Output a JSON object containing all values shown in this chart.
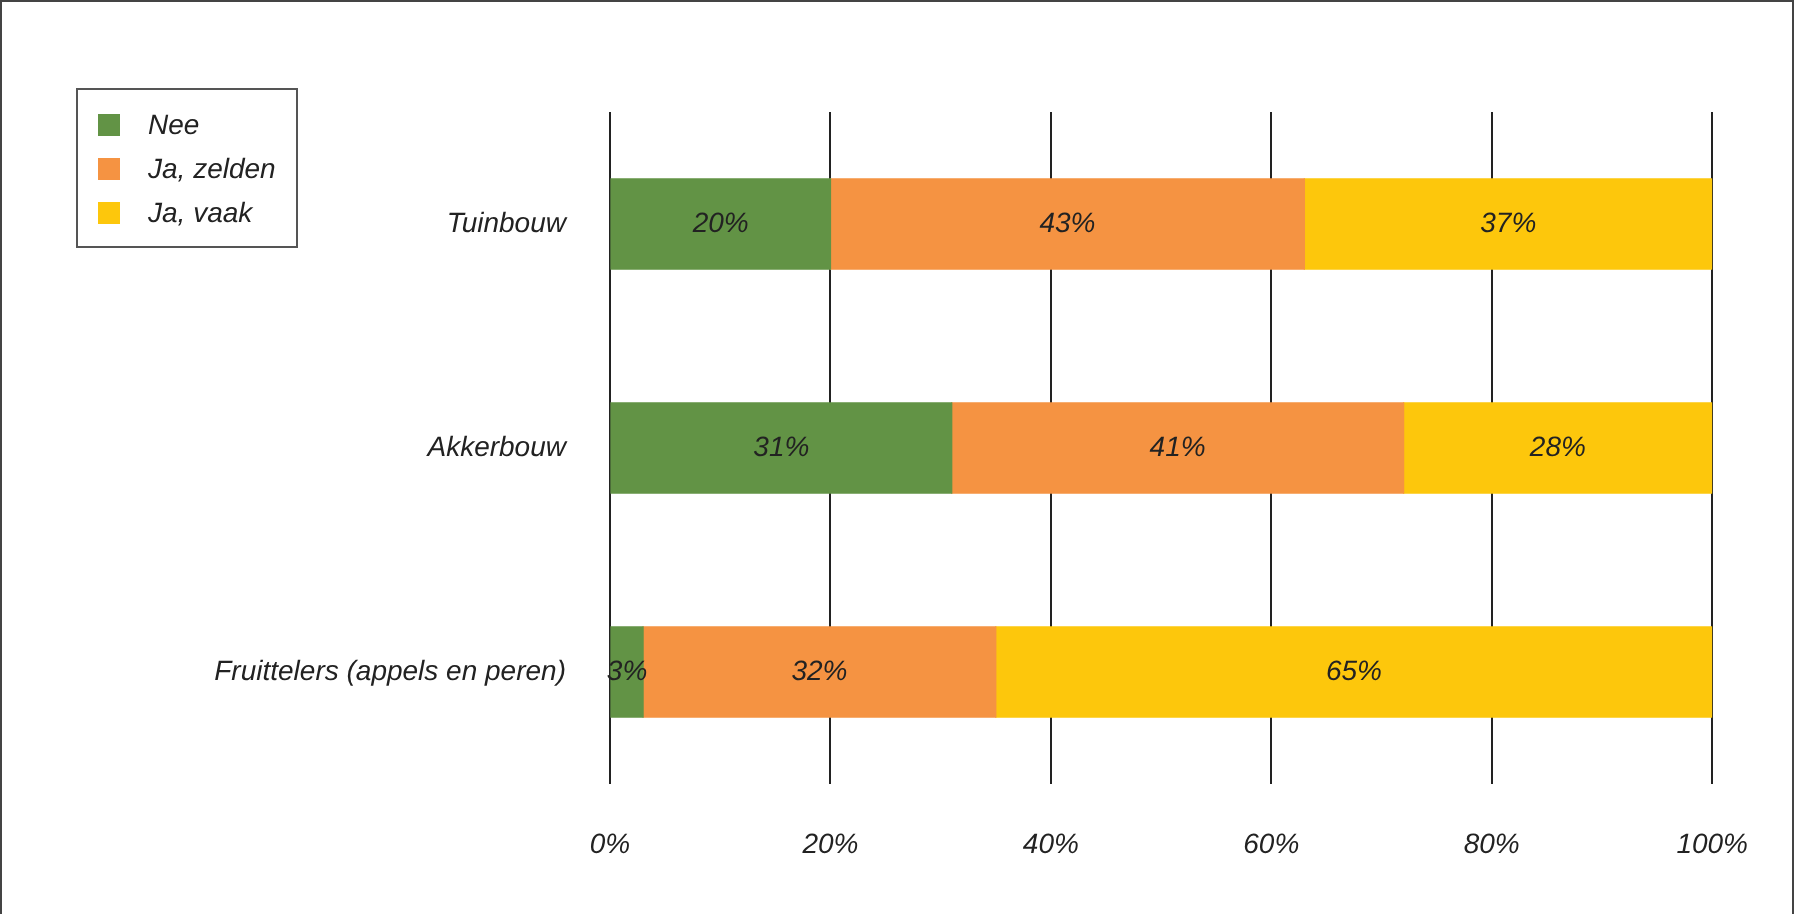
{
  "chart_data": {
    "type": "bar",
    "orientation": "horizontal",
    "stacked": true,
    "categories": [
      "Tuinbouw",
      "Akkerbouw",
      "Fruittelers (appels en peren)"
    ],
    "series": [
      {
        "name": "Nee",
        "color": "#629345",
        "values": [
          20,
          31,
          3
        ],
        "value_labels": [
          "20%",
          "31%",
          "3%"
        ]
      },
      {
        "name": "Ja, zelden",
        "color": "#f59342",
        "values": [
          43,
          41,
          32
        ],
        "value_labels": [
          "43%",
          "41%",
          "32%"
        ]
      },
      {
        "name": "Ja, vaak",
        "color": "#fdc70c",
        "values": [
          37,
          28,
          65
        ],
        "value_labels": [
          "37%",
          "28%",
          "65%"
        ]
      }
    ],
    "xlim": [
      0,
      100
    ],
    "xticks": [
      {
        "value": 0,
        "label": "0%"
      },
      {
        "value": 20,
        "label": "20%"
      },
      {
        "value": 40,
        "label": "40%"
      },
      {
        "value": 60,
        "label": "60%"
      },
      {
        "value": 80,
        "label": "80%"
      },
      {
        "value": 100,
        "label": "100%"
      }
    ],
    "grid": "x",
    "legend": "top left"
  }
}
